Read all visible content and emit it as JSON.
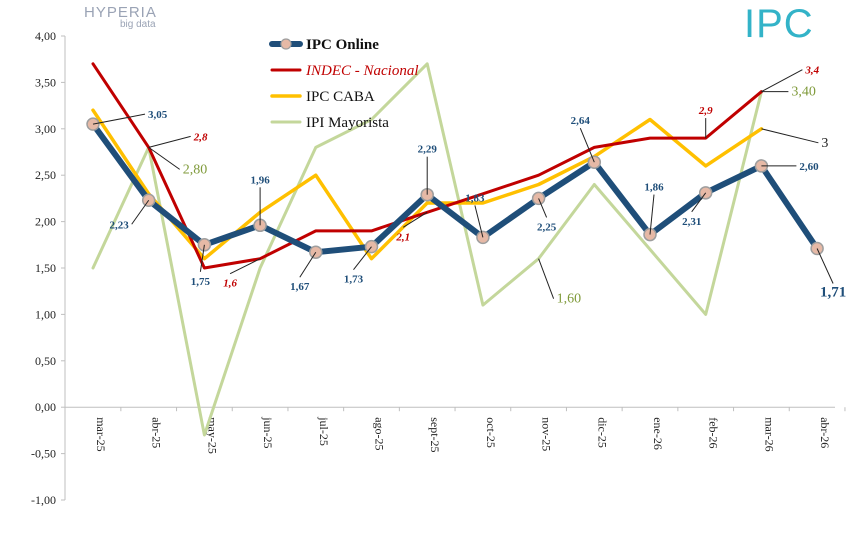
{
  "logos": {
    "hyperia_name": "HYPERIA",
    "hyperia_sub": "big data",
    "ipc_name": "IPC"
  },
  "colors": {
    "ipc_online": "#1f4e79",
    "indec": "#c00000",
    "ipc_caba": "#ffc000",
    "ipi": "#c4d79b",
    "marker_fill": "#e6b9a6"
  },
  "chart_data": {
    "type": "line",
    "categories": [
      "mar-25",
      "abr-25",
      "may-25",
      "jun-25",
      "jul-25",
      "ago-25",
      "sept-25",
      "oct-25",
      "nov-25",
      "dic-25",
      "ene-26",
      "feb-26",
      "mar-26",
      "abr-26"
    ],
    "y_ticks": [
      "4,00",
      "3,50",
      "3,00",
      "2,50",
      "2,00",
      "1,50",
      "1,00",
      "0,50",
      "0,00",
      "-0,50",
      "-1,00"
    ],
    "ylim": [
      -1.0,
      4.0
    ],
    "grid": false,
    "legend_position": "top-center",
    "series": [
      {
        "name": "IPC Online",
        "key": "ipc_online",
        "values": [
          3.05,
          2.23,
          1.75,
          1.96,
          1.67,
          1.73,
          2.29,
          1.83,
          2.25,
          2.64,
          1.86,
          2.31,
          2.6,
          1.71
        ]
      },
      {
        "name": "INDEC - Nacional",
        "key": "indec",
        "values": [
          3.7,
          2.8,
          1.5,
          1.6,
          1.9,
          1.9,
          2.1,
          2.3,
          2.5,
          2.8,
          2.9,
          2.9,
          3.4,
          null
        ]
      },
      {
        "name": "IPC CABA",
        "key": "ipc_caba",
        "values": [
          3.2,
          2.3,
          1.6,
          2.1,
          2.5,
          1.6,
          2.2,
          2.2,
          2.4,
          2.7,
          3.1,
          2.6,
          3.0,
          null
        ]
      },
      {
        "name": "IPI Mayorista",
        "key": "ipi",
        "values": [
          1.5,
          2.8,
          -0.3,
          1.5,
          2.8,
          3.1,
          3.7,
          1.1,
          1.6,
          2.4,
          1.7,
          1.0,
          3.4,
          null
        ]
      }
    ],
    "annotations": [
      {
        "text": "3,05",
        "series": "ipc_online",
        "index": 0
      },
      {
        "text": "2,23",
        "series": "ipc_online",
        "index": 1
      },
      {
        "text": "1,75",
        "series": "ipc_online",
        "index": 2
      },
      {
        "text": "1,96",
        "series": "ipc_online",
        "index": 3
      },
      {
        "text": "1,67",
        "series": "ipc_online",
        "index": 4
      },
      {
        "text": "1,73",
        "series": "ipc_online",
        "index": 5
      },
      {
        "text": "2,29",
        "series": "ipc_online",
        "index": 6
      },
      {
        "text": "1,83",
        "series": "ipc_online",
        "index": 7
      },
      {
        "text": "2,25",
        "series": "ipc_online",
        "index": 8
      },
      {
        "text": "2,64",
        "series": "ipc_online",
        "index": 9
      },
      {
        "text": "1,86",
        "series": "ipc_online",
        "index": 10
      },
      {
        "text": "2,31",
        "series": "ipc_online",
        "index": 11
      },
      {
        "text": "2,60",
        "series": "ipc_online",
        "index": 12
      },
      {
        "text": "1,71",
        "series": "ipc_online",
        "index": 13
      },
      {
        "text": "2,8",
        "series": "indec",
        "index": 1
      },
      {
        "text": "1,6",
        "series": "indec",
        "index": 3
      },
      {
        "text": "2,1",
        "series": "indec",
        "index": 6
      },
      {
        "text": "2,9",
        "series": "indec",
        "index": 11
      },
      {
        "text": "3,4",
        "series": "indec",
        "index": 12
      },
      {
        "text": "2,80",
        "series": "ipi",
        "index": 1
      },
      {
        "text": "1,60",
        "series": "ipi",
        "index": 8
      },
      {
        "text": "3,40",
        "series": "ipi",
        "index": 12
      },
      {
        "text": "3",
        "series": "ipc_caba",
        "index": 12
      }
    ]
  }
}
